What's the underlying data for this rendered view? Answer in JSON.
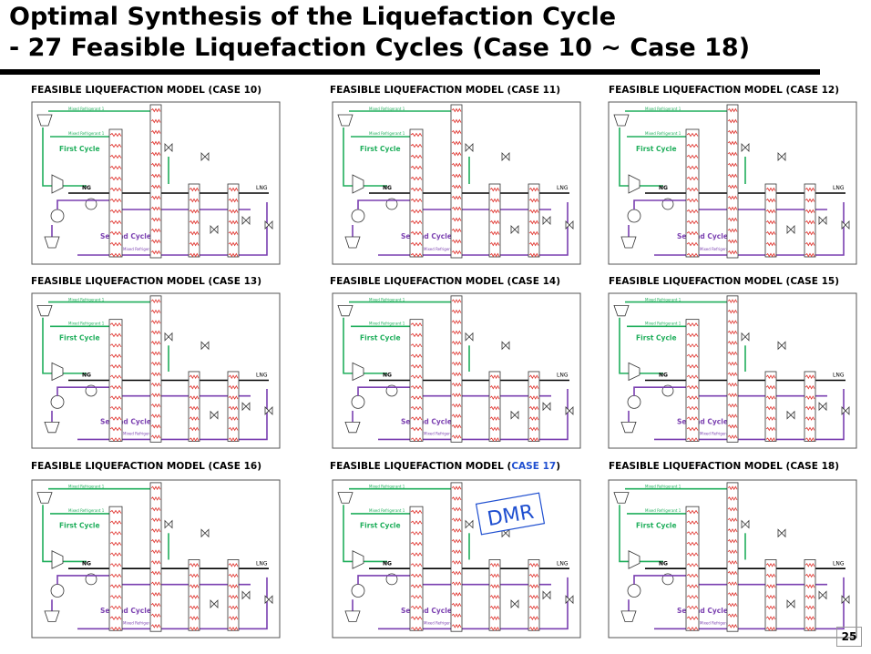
{
  "header": {
    "title_line1": "Optimal Synthesis of the Liquefaction Cycle",
    "title_line2": "- 27 Feasible Liquefaction Cycles (Case 10 ~ Case 18)"
  },
  "diagram_labels": {
    "first_cycle": "First Cycle",
    "second_cycle": "Second Cycle",
    "ng": "NG",
    "lng": "LNG",
    "mr1": "Mixed Refrigerant 1",
    "mr2": "Mixed Refrigerant 2"
  },
  "panels": [
    {
      "caption_prefix": "FEASIBLE LIQUEFACTION MODEL (",
      "case": "CASE 10",
      "caption_suffix": ")"
    },
    {
      "caption_prefix": "FEASIBLE LIQUEFACTION MODEL (",
      "case": "CASE 11",
      "caption_suffix": ")"
    },
    {
      "caption_prefix": "FEASIBLE LIQUEFACTION MODEL (",
      "case": "CASE 12",
      "caption_suffix": ")"
    },
    {
      "caption_prefix": "FEASIBLE LIQUEFACTION MODEL (",
      "case": "CASE 13",
      "caption_suffix": ")"
    },
    {
      "caption_prefix": "FEASIBLE LIQUEFACTION MODEL (",
      "case": "CASE 14",
      "caption_suffix": ")"
    },
    {
      "caption_prefix": "FEASIBLE LIQUEFACTION MODEL (",
      "case": "CASE 15",
      "caption_suffix": ")"
    },
    {
      "caption_prefix": "FEASIBLE LIQUEFACTION MODEL (",
      "case": "CASE 16",
      "caption_suffix": ")"
    },
    {
      "caption_prefix": "FEASIBLE LIQUEFACTION MODEL (",
      "case": "CASE 17",
      "caption_suffix": ")",
      "case_color": "#1f4fd0",
      "annotation": "DMR"
    },
    {
      "caption_prefix": "FEASIBLE LIQUEFACTION MODEL (",
      "case": "CASE 18",
      "caption_suffix": ")"
    }
  ],
  "page_number": "25"
}
